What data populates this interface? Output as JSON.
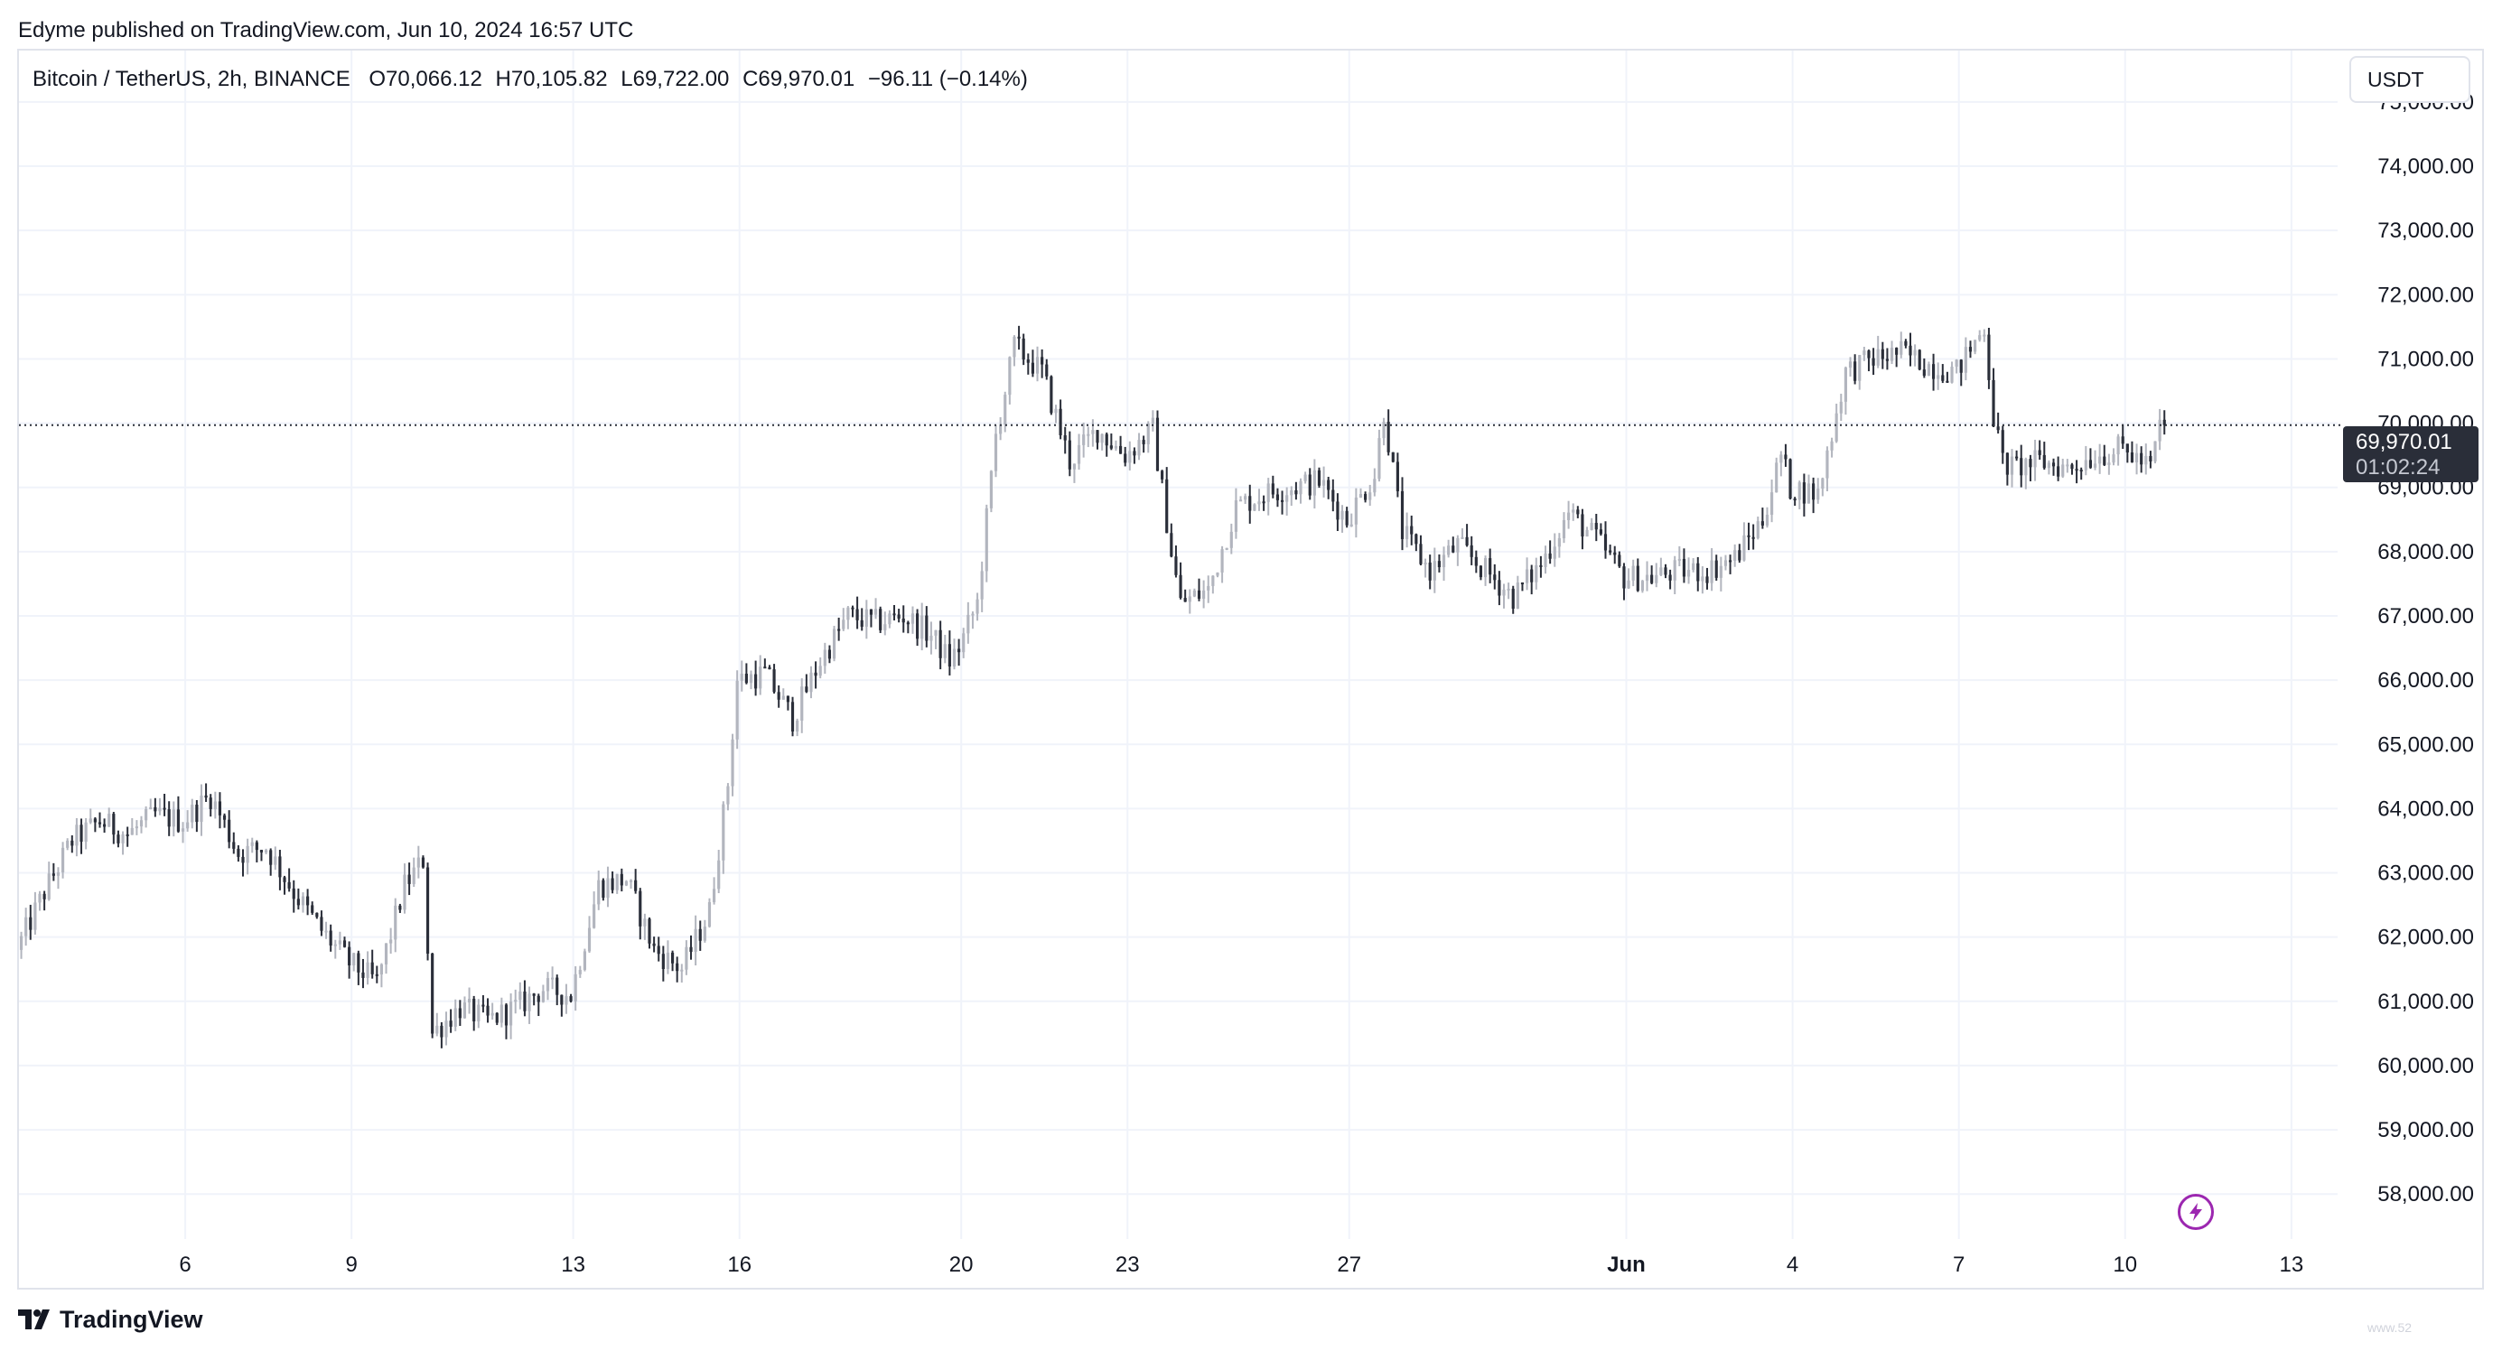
{
  "header": {
    "published_text": "Edyme published on TradingView.com, Jun 10, 2024 16:57 UTC"
  },
  "legend": {
    "symbol": "Bitcoin / TetherUS, 2h, BINANCE",
    "open": "O70,066.12",
    "high": "H70,105.82",
    "low": "L69,722.00",
    "close": "C69,970.01",
    "change": "−96.11 (−0.14%)"
  },
  "currency_button": "USDT",
  "price_label": {
    "price": "69,970.01",
    "countdown": "01:02:24"
  },
  "brand": {
    "name": "TradingView"
  },
  "watermark": "www.52",
  "colors": {
    "up_candle": "#b2b5be",
    "down_candle": "#2a2e39",
    "grid": "#f0f3fa",
    "axis_text": "#131722",
    "price_line": "#2a2e39",
    "accent_flash": "#9c27b0"
  },
  "icons": {
    "flash": "lightning-bolt-icon",
    "logo": "tradingview-logo-icon"
  },
  "chart_data": {
    "type": "candlestick",
    "symbol": "Bitcoin / TetherUS",
    "interval": "2h",
    "exchange": "BINANCE",
    "y_unit": "USDT",
    "ylim": [
      57300,
      75800
    ],
    "y_ticks": [
      58000,
      59000,
      60000,
      61000,
      62000,
      63000,
      64000,
      65000,
      66000,
      67000,
      68000,
      69000,
      70000,
      71000,
      72000,
      73000,
      74000,
      75000
    ],
    "y_tick_labels": [
      "58,000.00",
      "59,000.00",
      "60,000.00",
      "61,000.00",
      "62,000.00",
      "63,000.00",
      "64,000.00",
      "65,000.00",
      "66,000.00",
      "67,000.00",
      "68,000.00",
      "69,000.00",
      "70,000.00",
      "71,000.00",
      "72,000.00",
      "73,000.00",
      "74,000.00",
      "75,000.00"
    ],
    "xlim": [
      "2024-05-03T00:00",
      "2024-06-13T20:00"
    ],
    "x_ticks": [
      "2024-05-06",
      "2024-05-09",
      "2024-05-13",
      "2024-05-16",
      "2024-05-20",
      "2024-05-23",
      "2024-05-27",
      "2024-06-01",
      "2024-06-04",
      "2024-06-07",
      "2024-06-10",
      "2024-06-13"
    ],
    "x_tick_labels": [
      "6",
      "9",
      "13",
      "16",
      "20",
      "23",
      "27",
      "Jun",
      "4",
      "7",
      "10",
      "13"
    ],
    "x_tick_bold": [
      false,
      false,
      false,
      false,
      false,
      false,
      false,
      true,
      false,
      false,
      false,
      false
    ],
    "last_price": 69970.01,
    "grid": true,
    "price_path": [
      [
        "2024-05-03T00:00",
        61800
      ],
      [
        "2024-05-03T12:00",
        62700
      ],
      [
        "2024-05-04T00:00",
        63500
      ],
      [
        "2024-05-04T12:00",
        63800
      ],
      [
        "2024-05-05T00:00",
        63600
      ],
      [
        "2024-05-05T12:00",
        63900
      ],
      [
        "2024-05-06T00:00",
        63800
      ],
      [
        "2024-05-06T12:00",
        64200
      ],
      [
        "2024-05-07T00:00",
        63300
      ],
      [
        "2024-05-07T12:00",
        63400
      ],
      [
        "2024-05-08T00:00",
        62700
      ],
      [
        "2024-05-08T12:00",
        62100
      ],
      [
        "2024-05-09T00:00",
        61600
      ],
      [
        "2024-05-09T12:00",
        61300
      ],
      [
        "2024-05-10T00:00",
        62800
      ],
      [
        "2024-05-10T08:00",
        63200
      ],
      [
        "2024-05-10T12:00",
        60500
      ],
      [
        "2024-05-11T00:00",
        60900
      ],
      [
        "2024-05-11T12:00",
        60700
      ],
      [
        "2024-05-12T00:00",
        60900
      ],
      [
        "2024-05-12T12:00",
        61200
      ],
      [
        "2024-05-13T00:00",
        61100
      ],
      [
        "2024-05-13T12:00",
        62800
      ],
      [
        "2024-05-14T00:00",
        62900
      ],
      [
        "2024-05-14T12:00",
        61800
      ],
      [
        "2024-05-15T00:00",
        61500
      ],
      [
        "2024-05-15T12:00",
        62400
      ],
      [
        "2024-05-15T20:00",
        64400
      ],
      [
        "2024-05-16T00:00",
        66000
      ],
      [
        "2024-05-16T12:00",
        66100
      ],
      [
        "2024-05-17T00:00",
        65400
      ],
      [
        "2024-05-17T12:00",
        66300
      ],
      [
        "2024-05-18T00:00",
        67000
      ],
      [
        "2024-05-18T12:00",
        66900
      ],
      [
        "2024-05-19T00:00",
        67000
      ],
      [
        "2024-05-19T12:00",
        66700
      ],
      [
        "2024-05-19T20:00",
        66300
      ],
      [
        "2024-05-20T00:00",
        66500
      ],
      [
        "2024-05-20T08:00",
        67200
      ],
      [
        "2024-05-20T16:00",
        69800
      ],
      [
        "2024-05-21T00:00",
        71200
      ],
      [
        "2024-05-21T12:00",
        70800
      ],
      [
        "2024-05-22T00:00",
        69400
      ],
      [
        "2024-05-22T12:00",
        69900
      ],
      [
        "2024-05-23T00:00",
        69500
      ],
      [
        "2024-05-23T12:00",
        69900
      ],
      [
        "2024-05-23T20:00",
        68000
      ],
      [
        "2024-05-24T00:00",
        67200
      ],
      [
        "2024-05-24T12:00",
        67400
      ],
      [
        "2024-05-25T00:00",
        68700
      ],
      [
        "2024-05-25T12:00",
        68900
      ],
      [
        "2024-05-26T00:00",
        69000
      ],
      [
        "2024-05-26T12:00",
        69100
      ],
      [
        "2024-05-27T00:00",
        68500
      ],
      [
        "2024-05-27T12:00",
        69200
      ],
      [
        "2024-05-27T16:00",
        70200
      ],
      [
        "2024-05-28T00:00",
        68300
      ],
      [
        "2024-05-28T12:00",
        67700
      ],
      [
        "2024-05-29T00:00",
        68100
      ],
      [
        "2024-05-29T12:00",
        67700
      ],
      [
        "2024-05-30T00:00",
        67300
      ],
      [
        "2024-05-30T12:00",
        67800
      ],
      [
        "2024-05-31T00:00",
        68600
      ],
      [
        "2024-05-31T12:00",
        68200
      ],
      [
        "2024-06-01T00:00",
        67600
      ],
      [
        "2024-06-01T12:00",
        67600
      ],
      [
        "2024-06-02T00:00",
        67700
      ],
      [
        "2024-06-02T12:00",
        67700
      ],
      [
        "2024-06-03T00:00",
        67900
      ],
      [
        "2024-06-03T12:00",
        68500
      ],
      [
        "2024-06-03T20:00",
        69500
      ],
      [
        "2024-06-04T00:00",
        69000
      ],
      [
        "2024-06-04T12:00",
        68900
      ],
      [
        "2024-06-05T00:00",
        70800
      ],
      [
        "2024-06-05T12:00",
        71000
      ],
      [
        "2024-06-06T00:00",
        71100
      ],
      [
        "2024-06-06T12:00",
        70900
      ],
      [
        "2024-06-07T00:00",
        70800
      ],
      [
        "2024-06-07T12:00",
        71500
      ],
      [
        "2024-06-07T16:00",
        70100
      ],
      [
        "2024-06-07T20:00",
        69400
      ],
      [
        "2024-06-08T00:00",
        69300
      ],
      [
        "2024-06-08T12:00",
        69400
      ],
      [
        "2024-06-09T00:00",
        69300
      ],
      [
        "2024-06-09T12:00",
        69500
      ],
      [
        "2024-06-10T00:00",
        69600
      ],
      [
        "2024-06-10T12:00",
        69300
      ],
      [
        "2024-06-10T16:00",
        69970
      ]
    ]
  }
}
